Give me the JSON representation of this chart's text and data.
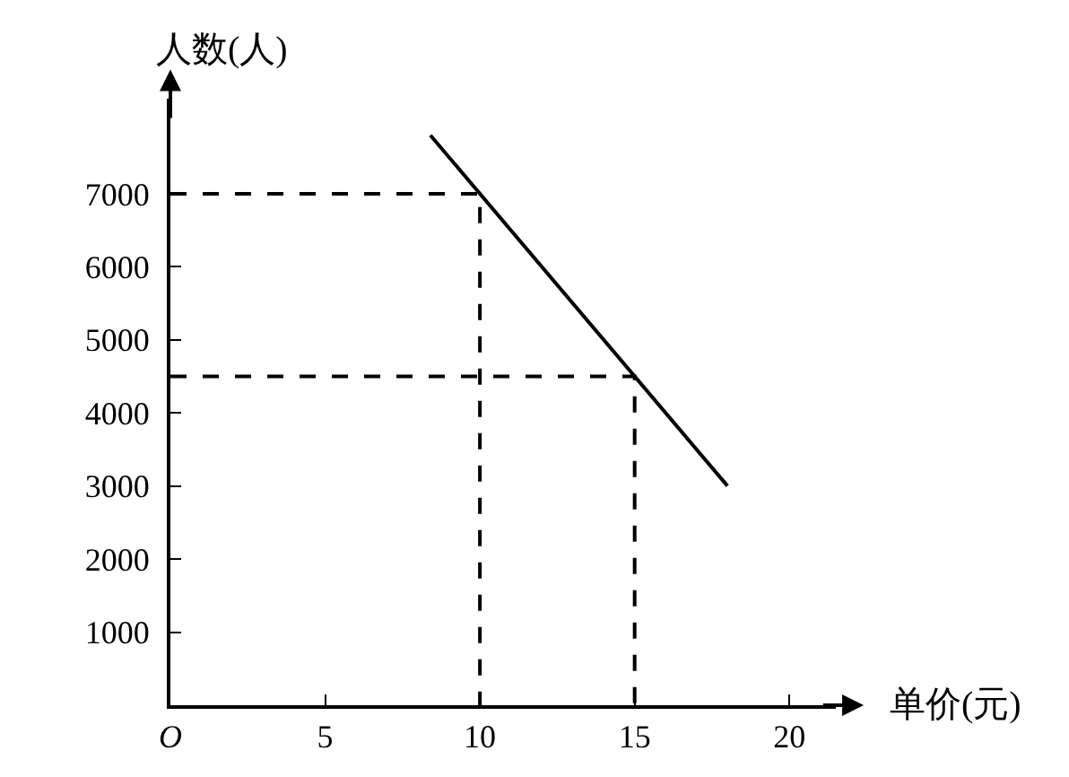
{
  "chart_data": {
    "type": "line",
    "xlabel": "单价(元)",
    "ylabel": "人数(人)",
    "series": [
      {
        "x": [
          8.4,
          18
        ],
        "values": [
          7800,
          3000
        ],
        "color": "#000000",
        "line_style": "solid"
      },
      {
        "x": [
          0,
          10,
          10
        ],
        "values": [
          7000,
          7000,
          0
        ],
        "color": "#000000",
        "line_style": "dashed"
      },
      {
        "x": [
          0,
          15,
          15
        ],
        "values": [
          4500,
          4500,
          0
        ],
        "color": "#000000",
        "line_style": "dashed"
      }
    ],
    "xlim": [
      0,
      21.5
    ],
    "ylim": [
      0,
      8300
    ],
    "xticks": [
      {
        "value": 0,
        "label": "O"
      },
      5,
      10,
      15,
      20
    ],
    "yticks": [
      1000,
      2000,
      3000,
      4000,
      5000,
      6000,
      7000
    ],
    "marker": "none"
  }
}
